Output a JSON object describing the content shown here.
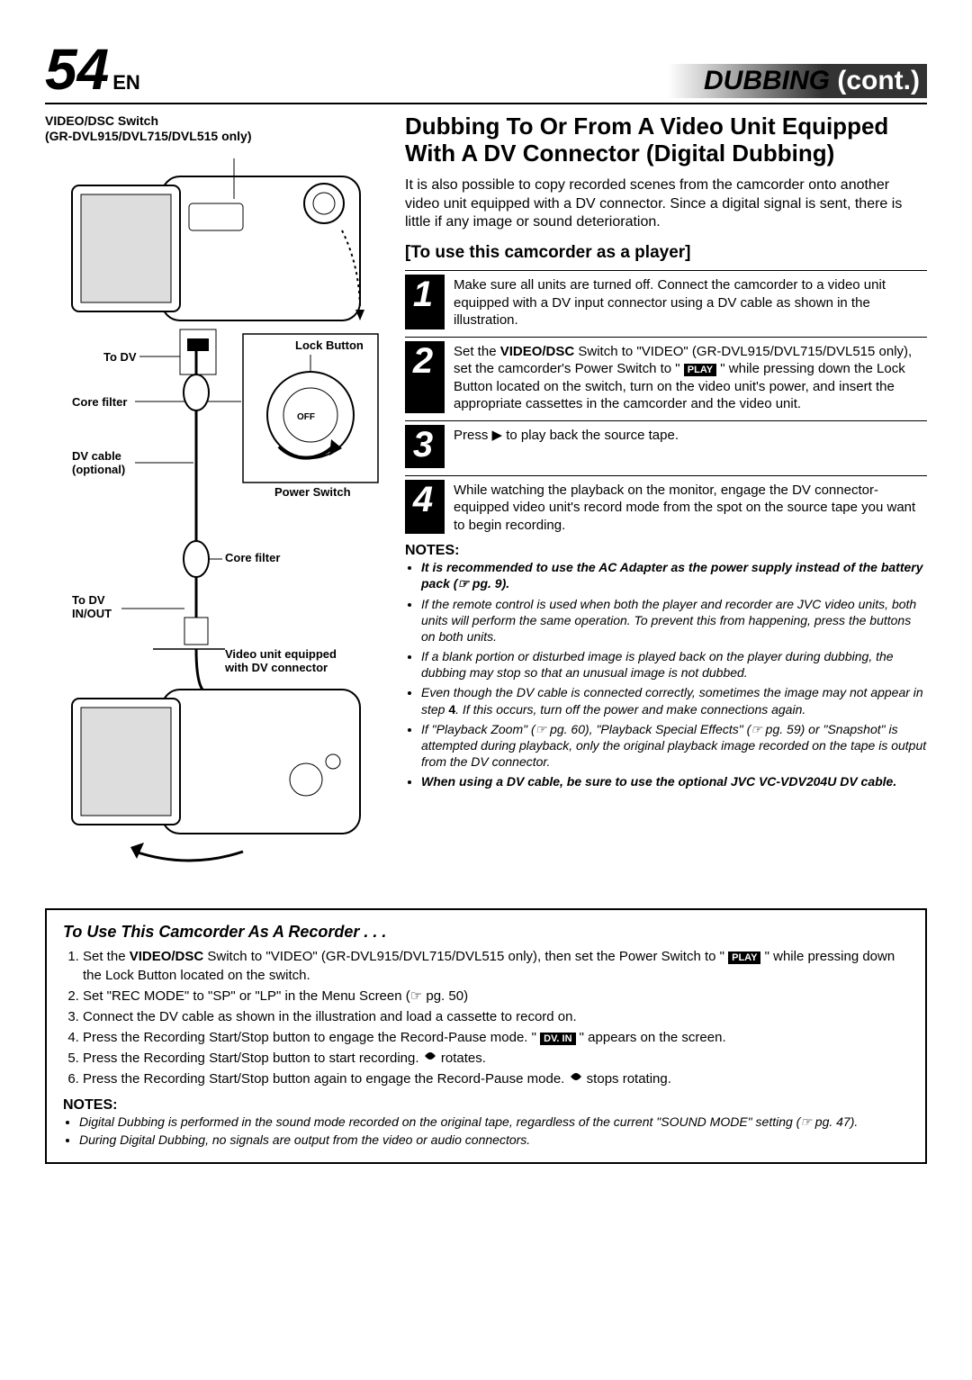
{
  "header": {
    "page_number": "54",
    "lang": "EN",
    "section": "DUBBING",
    "cont": "(cont.)"
  },
  "title": "Dubbing To Or From A Video Unit Equipped With A DV Connector (Digital Dubbing)",
  "intro": "It is also possible to copy recorded scenes from the camcorder onto another video unit equipped with a DV connector. Since a digital signal is sent, there is little if any image or sound deterioration.",
  "subtitle": "[To use this camcorder as a player]",
  "steps": [
    {
      "n": "1",
      "text": "Make sure all units are turned off. Connect the camcorder to a video unit equipped with a DV input connector using a DV cable as shown in the illustration."
    },
    {
      "n": "2",
      "pre": "Set the ",
      "b1": "VIDEO/DSC",
      "mid": " Switch to \"VIDEO\" (GR-DVL915/DVL715/DVL515 only), set the camcorder's Power Switch to \" ",
      "badge": "PLAY",
      "post": " \" while pressing down the Lock Button located on the switch, turn on the video unit's power, and insert the appropriate cassettes in the camcorder and the video unit."
    },
    {
      "n": "3",
      "text": "Press ▶ to play back the source tape."
    },
    {
      "n": "4",
      "text": "While watching the playback on the monitor, engage the DV connector-equipped video unit's record mode from the spot on the source tape you want to begin recording."
    }
  ],
  "notes_hdr": "NOTES:",
  "notes": [
    {
      "bold": true,
      "text": "It is recommended to use the AC Adapter as the power supply instead of the battery pack (☞ pg. 9)."
    },
    {
      "bold": false,
      "text": "If the remote control is used when both the player and recorder are JVC video units, both units will perform the same operation. To prevent this from happening, press the buttons on both units."
    },
    {
      "bold": false,
      "text": "If a blank portion or disturbed image is played back on the player during dubbing, the dubbing may stop so that an unusual image is not dubbed."
    },
    {
      "bold": false,
      "pre": "Even though the DV cable is connected correctly, sometimes the image may not appear in step ",
      "b": "4",
      "post": ". If this occurs, turn off the power and make connections again."
    },
    {
      "bold": false,
      "text": "If \"Playback Zoom\" (☞ pg. 60), \"Playback Special Effects\" (☞ pg. 59) or \"Snapshot\" is attempted during playback, only the original playback image recorded on the tape is output from the DV connector."
    },
    {
      "bold": true,
      "text": "When using a DV cable, be sure to use the optional JVC VC-VDV204U DV cable."
    }
  ],
  "diagram": {
    "label_top": "VIDEO/DSC Switch\n(GR-DVL915/DVL715/DVL515 only)",
    "to_dv": "To DV",
    "core_filter": "Core filter",
    "lock_button": "Lock Button",
    "dv_cable": "DV cable\n(optional)",
    "power_switch": "Power Switch",
    "core_filter2": "Core filter",
    "to_dv_inout": "To DV\nIN/OUT",
    "video_unit": "Video unit equipped\nwith DV connector"
  },
  "recorder": {
    "title": "To Use This Camcorder As A Recorder . . .",
    "steps": [
      {
        "pre": "Set the ",
        "b1": "VIDEO/DSC",
        "mid": " Switch to \"VIDEO\" (GR-DVL915/DVL715/DVL515 only), then set the Power Switch to \" ",
        "badge": "PLAY",
        "post": " \" while pressing down the Lock Button located on the switch."
      },
      {
        "text": "Set \"REC MODE\" to \"SP\" or \"LP\" in the Menu Screen (☞ pg. 50)"
      },
      {
        "text": "Connect the DV cable as shown in the illustration and load a cassette to record on."
      },
      {
        "pre": "Press the Recording Start/Stop button to engage the Record-Pause mode. \" ",
        "badge": "DV. IN",
        "post": " \" appears on the screen."
      },
      {
        "pre": "Press the Recording Start/Stop button to start recording. ",
        "icon": "rotate",
        "post": " rotates."
      },
      {
        "pre": "Press the Recording Start/Stop button again to engage the Record-Pause mode. ",
        "icon": "rotate",
        "post": " stops rotating."
      }
    ],
    "notes_hdr": "NOTES:",
    "notes": [
      "Digital Dubbing is performed in the sound mode recorded on the original tape, regardless of the current \"SOUND MODE\" setting (☞ pg. 47).",
      "During Digital Dubbing, no signals are output from the video or audio connectors."
    ]
  },
  "colors": {
    "black": "#000000",
    "white": "#ffffff",
    "gray": "#888888"
  }
}
